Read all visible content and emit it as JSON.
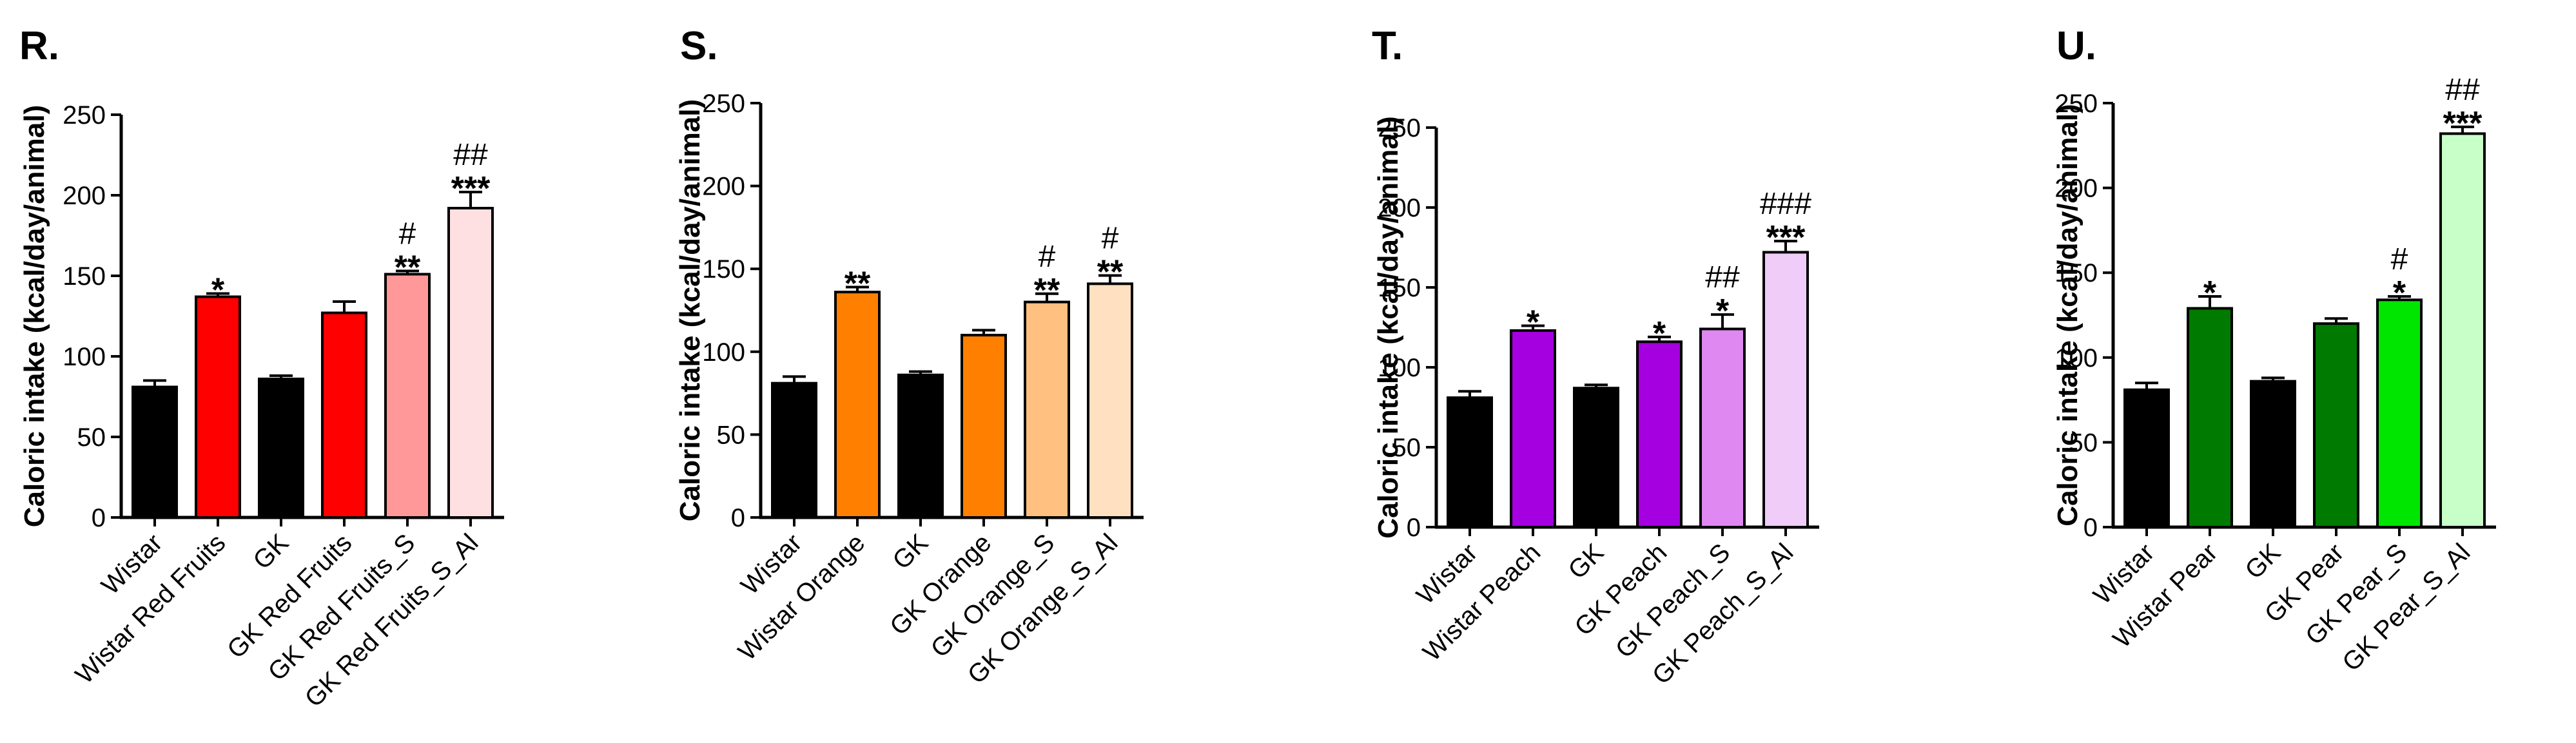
{
  "colors": {
    "axis": "#000000",
    "bar_stroke": "#000000"
  },
  "chart_data": [
    {
      "type": "bar",
      "panel": "R.",
      "ylabel": "Caloric intake (kcal/day/animal)",
      "ylim": [
        0,
        250
      ],
      "yticks": [
        "0",
        "50",
        "100",
        "150",
        "200",
        "250"
      ],
      "categories": [
        "Wistar",
        "Wistar Red Fruits",
        "GK",
        "GK Red Fruits",
        "GK Red Fruits_S",
        "GK Red Fruits_S_Al"
      ],
      "values": [
        81,
        137,
        86,
        127,
        151,
        192
      ],
      "errors": [
        4,
        2,
        2,
        7,
        2,
        10
      ],
      "colors": [
        "#000000",
        "#ff0000",
        "#000000",
        "#ff0000",
        "#ff9999",
        "#ffe0e2"
      ],
      "sig_star": [
        "",
        "*",
        "",
        "",
        "**",
        "***"
      ],
      "sig_hash": [
        "",
        "",
        "",
        "",
        "#",
        "##"
      ]
    },
    {
      "type": "bar",
      "panel": "S.",
      "ylabel": "Caloric intake (kcal/day/animal)",
      "ylim": [
        0,
        250
      ],
      "yticks": [
        "0",
        "50",
        "100",
        "150",
        "200",
        "250"
      ],
      "categories": [
        "Wistar",
        "Wistar Orange",
        "GK",
        "GK Orange",
        "GK Orange_S",
        "GK Orange_S_Al"
      ],
      "values": [
        81,
        136,
        86,
        110,
        130,
        141
      ],
      "errors": [
        4,
        3,
        2,
        3,
        5,
        5
      ],
      "colors": [
        "#000000",
        "#ff8000",
        "#000000",
        "#ff8000",
        "#ffc080",
        "#ffe0c0"
      ],
      "sig_star": [
        "",
        "**",
        "",
        "",
        "**",
        "**"
      ],
      "sig_hash": [
        "",
        "",
        "",
        "",
        "#",
        "#"
      ]
    },
    {
      "type": "bar",
      "panel": "T.",
      "ylabel": "Caloric intake (kcal/day/animal)",
      "ylim": [
        0,
        250
      ],
      "yticks": [
        "0",
        "50",
        "100",
        "150",
        "200",
        "250"
      ],
      "categories": [
        "Wistar",
        "Wistar Peach",
        "GK",
        "GK Peach",
        "GK Peach_S",
        "GK Peach_S_Al"
      ],
      "values": [
        81,
        123,
        87,
        116,
        124,
        172
      ],
      "errors": [
        4,
        3,
        2,
        3,
        9,
        7
      ],
      "colors": [
        "#000000",
        "#a400e0",
        "#000000",
        "#a400e0",
        "#df88f2",
        "#f0ccf8"
      ],
      "sig_star": [
        "",
        "*",
        "",
        "*",
        "*",
        "***"
      ],
      "sig_hash": [
        "",
        "",
        "",
        "",
        "##",
        "###"
      ]
    },
    {
      "type": "bar",
      "panel": "U.",
      "ylabel": "Caloric intake (kcal/day/animal)",
      "ylim": [
        0,
        250
      ],
      "yticks": [
        "0",
        "50",
        "100",
        "150",
        "200",
        "250"
      ],
      "categories": [
        "Wistar",
        "Wistar Pear",
        "GK",
        "GK Pear",
        "GK Pear_S",
        "GK Pear_S_Al"
      ],
      "values": [
        81,
        129,
        86,
        120,
        134,
        232
      ],
      "errors": [
        4,
        7,
        2,
        3,
        2,
        4
      ],
      "colors": [
        "#000000",
        "#007a00",
        "#000000",
        "#007a00",
        "#00e600",
        "#c8ffc8"
      ],
      "sig_star": [
        "",
        "*",
        "",
        "",
        "*",
        "***"
      ],
      "sig_hash": [
        "",
        "",
        "",
        "",
        "#",
        "##"
      ]
    }
  ]
}
